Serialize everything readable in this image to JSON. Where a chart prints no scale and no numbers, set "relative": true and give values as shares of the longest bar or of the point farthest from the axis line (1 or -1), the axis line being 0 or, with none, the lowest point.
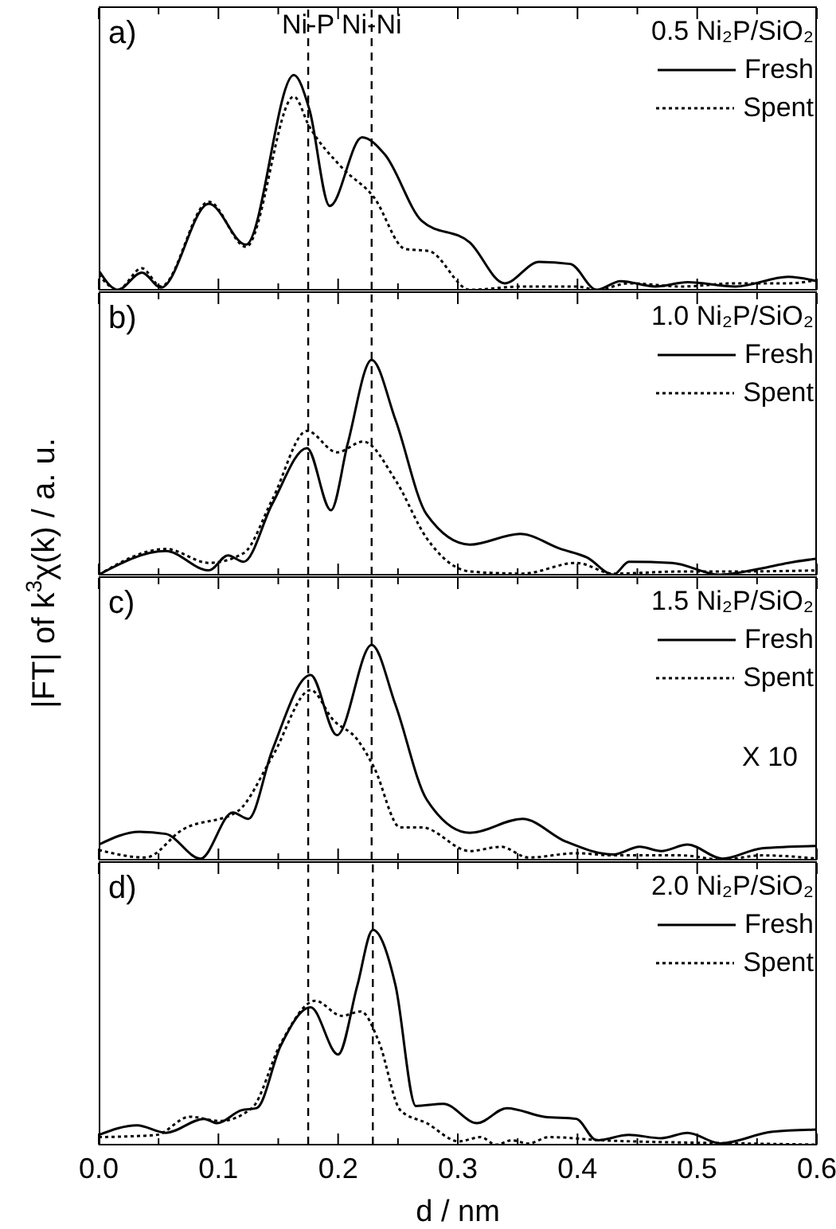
{
  "chart_data": [
    {
      "type": "line",
      "relative": true,
      "ylabel": "|FT| of k$^{3}$χ(k) / a. u.",
      "legend_title": "0.5 Ni₂P/SiO₂",
      "legend": "top right",
      "annotations": [
        "a)"
      ],
      "xlim": [
        0,
        0.6
      ],
      "xticks": [
        0,
        {
          "value": 0.05,
          "label": null
        },
        0.1,
        {
          "value": 0.15,
          "label": null
        },
        0.2,
        {
          "value": 0.25,
          "label": null
        },
        0.3,
        {
          "value": 0.35,
          "label": null
        },
        0.4,
        {
          "value": 0.45,
          "label": null
        },
        0.5,
        {
          "value": 0.55,
          "label": null
        },
        0.6
      ],
      "tick_labels": false,
      "ref_lines": [
        {
          "axis": "x",
          "value": 0.175,
          "label": "Ni-P",
          "line_style": "dashed",
          "color": "#000000"
        },
        {
          "axis": "x",
          "value": 0.228,
          "label": "Ni-Ni",
          "line_style": "dashed",
          "color": "#000000"
        }
      ],
      "series": [
        {
          "name": "Fresh",
          "color": "#000000",
          "line_style": "solid",
          "x": [
            0,
            0.016,
            0.036,
            0.052,
            0.092,
            0.123,
            0.163,
            0.176,
            0.193,
            0.22,
            0.239,
            0.27,
            0.31,
            0.339,
            0.368,
            0.394,
            0.416,
            0.436,
            0.465,
            0.492,
            0.532,
            0.576,
            0.6
          ],
          "values": [
            0.09,
            0,
            0.08,
            0.01,
            0.4,
            0.21,
            1.0,
            0.84,
            0.39,
            0.71,
            0.63,
            0.32,
            0.22,
            0.03,
            0.13,
            0.12,
            0,
            0.04,
            0.015,
            0.035,
            0.015,
            0.06,
            0.04
          ]
        },
        {
          "name": "Spent",
          "color": "#000000",
          "line_style": "dotted",
          "x": [
            0,
            0.016,
            0.036,
            0.052,
            0.092,
            0.123,
            0.163,
            0.176,
            0.203,
            0.23,
            0.256,
            0.276,
            0.31,
            0.354,
            0.399,
            0.416,
            0.443,
            0.487,
            0.532,
            0.576,
            0.6
          ],
          "values": [
            0.07,
            0,
            0.1,
            0.015,
            0.41,
            0.2,
            0.9,
            0.76,
            0.57,
            0.43,
            0.19,
            0.18,
            0,
            0.015,
            0.015,
            0,
            0.03,
            0.015,
            0.03,
            0.03,
            0.045
          ]
        }
      ]
    },
    {
      "type": "line",
      "relative": true,
      "legend_title": "1.0 Ni₂P/SiO₂",
      "legend": "top right",
      "annotations": [
        "b)"
      ],
      "xlim": [
        0,
        0.6
      ],
      "xticks": [
        0,
        {
          "value": 0.05,
          "label": null
        },
        0.1,
        {
          "value": 0.15,
          "label": null
        },
        0.2,
        {
          "value": 0.25,
          "label": null
        },
        0.3,
        {
          "value": 0.35,
          "label": null
        },
        0.4,
        {
          "value": 0.45,
          "label": null
        },
        0.5,
        {
          "value": 0.55,
          "label": null
        },
        0.6
      ],
      "tick_labels": false,
      "ref_lines": [
        {
          "axis": "x",
          "value": 0.175,
          "label": null,
          "line_style": "dashed",
          "color": "#000000"
        },
        {
          "axis": "x",
          "value": 0.228,
          "label": null,
          "line_style": "dashed",
          "color": "#000000"
        }
      ],
      "series": [
        {
          "name": "Fresh",
          "color": "#000000",
          "line_style": "solid",
          "x": [
            0,
            0.056,
            0.092,
            0.108,
            0.121,
            0.145,
            0.174,
            0.194,
            0.208,
            0.228,
            0.248,
            0.274,
            0.31,
            0.352,
            0.386,
            0.408,
            0.43,
            0.443,
            0.479,
            0.519,
            0.554,
            0.576,
            0.6
          ],
          "values": [
            0,
            0.11,
            0.02,
            0.09,
            0.06,
            0.33,
            0.59,
            0.3,
            0.61,
            1.0,
            0.72,
            0.28,
            0.14,
            0.19,
            0.12,
            0.08,
            0,
            0.06,
            0.055,
            0,
            0.03,
            0.055,
            0.075
          ]
        },
        {
          "name": "Spent",
          "color": "#000000",
          "line_style": "dotted",
          "x": [
            0,
            0.056,
            0.092,
            0.121,
            0.145,
            0.174,
            0.199,
            0.221,
            0.248,
            0.274,
            0.31,
            0.354,
            0.399,
            0.43,
            0.487,
            0.532,
            0.6
          ],
          "values": [
            0,
            0.12,
            0.055,
            0.1,
            0.35,
            0.67,
            0.57,
            0.62,
            0.44,
            0.17,
            0.015,
            0.005,
            0.055,
            0.005,
            0.015,
            0.015,
            0.02
          ]
        }
      ]
    },
    {
      "type": "line",
      "relative": true,
      "legend_title": "1.5 Ni₂P/SiO₂",
      "legend": "top right",
      "annotations": [
        "c)",
        "X 10"
      ],
      "xlim": [
        0,
        0.6
      ],
      "xticks": [
        0,
        {
          "value": 0.05,
          "label": null
        },
        0.1,
        {
          "value": 0.15,
          "label": null
        },
        0.2,
        {
          "value": 0.25,
          "label": null
        },
        0.3,
        {
          "value": 0.35,
          "label": null
        },
        0.4,
        {
          "value": 0.45,
          "label": null
        },
        0.5,
        {
          "value": 0.55,
          "label": null
        },
        0.6
      ],
      "tick_labels": false,
      "ref_lines": [
        {
          "axis": "x",
          "value": 0.175,
          "label": null,
          "line_style": "dashed",
          "color": "#000000"
        },
        {
          "axis": "x",
          "value": 0.228,
          "label": null,
          "line_style": "dashed",
          "color": "#000000"
        }
      ],
      "series": [
        {
          "name": "Fresh",
          "color": "#000000",
          "line_style": "solid",
          "x": [
            0,
            0.034,
            0.056,
            0.085,
            0.112,
            0.125,
            0.145,
            0.177,
            0.199,
            0.228,
            0.248,
            0.274,
            0.31,
            0.354,
            0.39,
            0.43,
            0.452,
            0.47,
            0.492,
            0.521,
            0.554,
            0.6
          ],
          "values": [
            0.07,
            0.13,
            0.12,
            0.005,
            0.22,
            0.19,
            0.51,
            0.86,
            0.58,
            1.0,
            0.72,
            0.28,
            0.125,
            0.19,
            0.085,
            0.024,
            0.06,
            0.04,
            0.07,
            0.005,
            0.053,
            0.064
          ]
        },
        {
          "name": "Spent",
          "color": "#000000",
          "line_style": "dotted",
          "x": [
            0,
            0.039,
            0.07,
            0.116,
            0.145,
            0.177,
            0.196,
            0.216,
            0.23,
            0.252,
            0.27,
            0.31,
            0.336,
            0.359,
            0.399,
            0.43,
            0.487,
            0.521,
            0.554,
            0.6
          ],
          "values": [
            0.045,
            0.01,
            0.14,
            0.225,
            0.48,
            0.79,
            0.65,
            0.56,
            0.43,
            0.15,
            0.15,
            0.04,
            0.06,
            0.01,
            0.03,
            0.02,
            0.02,
            0,
            0.02,
            0.005
          ]
        }
      ]
    },
    {
      "type": "line",
      "relative": true,
      "legend_title": "2.0 Ni₂P/SiO₂",
      "legend": "top right",
      "annotations": [
        "d)"
      ],
      "xlabel": "d / nm",
      "xlim": [
        0,
        0.6
      ],
      "xticks": [
        {
          "value": 0,
          "label": "0.0"
        },
        {
          "value": 0.05,
          "label": null
        },
        0.1,
        {
          "value": 0.15,
          "label": null
        },
        0.2,
        {
          "value": 0.25,
          "label": null
        },
        0.3,
        {
          "value": 0.35,
          "label": null
        },
        0.4,
        {
          "value": 0.45,
          "label": null
        },
        0.5,
        {
          "value": 0.55,
          "label": null
        },
        0.6
      ],
      "tick_labels": "x",
      "ref_lines": [
        {
          "axis": "x",
          "value": 0.175,
          "label": null,
          "line_style": "dashed",
          "color": "#000000"
        },
        {
          "axis": "x",
          "value": 0.229,
          "label": null,
          "line_style": "dashed",
          "color": "#000000"
        }
      ],
      "series": [
        {
          "name": "Fresh",
          "color": "#000000",
          "line_style": "solid",
          "x": [
            0,
            0.032,
            0.056,
            0.088,
            0.099,
            0.119,
            0.132,
            0.152,
            0.177,
            0.2,
            0.216,
            0.229,
            0.248,
            0.265,
            0.288,
            0.316,
            0.341,
            0.372,
            0.399,
            0.416,
            0.443,
            0.47,
            0.492,
            0.519,
            0.563,
            0.6
          ],
          "values": [
            0.045,
            0.09,
            0.055,
            0.12,
            0.1,
            0.16,
            0.17,
            0.46,
            0.64,
            0.42,
            0.74,
            1.0,
            0.74,
            0.18,
            0.19,
            0.1,
            0.17,
            0.13,
            0.12,
            0.02,
            0.045,
            0.03,
            0.055,
            0.006,
            0.06,
            0.07
          ]
        },
        {
          "name": "Spent",
          "color": "#000000",
          "line_style": "dotted",
          "x": [
            0,
            0.048,
            0.076,
            0.101,
            0.128,
            0.152,
            0.181,
            0.203,
            0.219,
            0.234,
            0.252,
            0.274,
            0.301,
            0.319,
            0.332,
            0.345,
            0.359,
            0.376,
            0.421,
            0.487,
            0.532,
            0.6
          ],
          "values": [
            0.035,
            0.045,
            0.13,
            0.11,
            0.17,
            0.47,
            0.67,
            0.6,
            0.62,
            0.48,
            0.16,
            0.1,
            0.015,
            0.035,
            0,
            0.02,
            0.005,
            0.035,
            0.02,
            0.01,
            0.006,
            0
          ]
        }
      ]
    }
  ]
}
